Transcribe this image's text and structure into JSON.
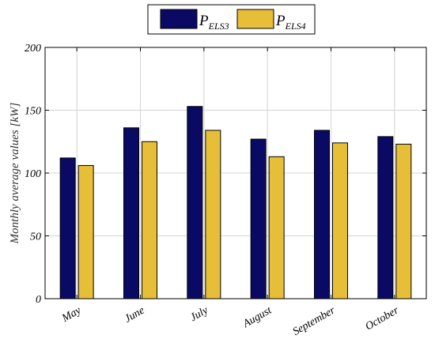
{
  "chart_data": {
    "type": "bar",
    "categories": [
      "May",
      "June",
      "July",
      "August",
      "September",
      "October"
    ],
    "series": [
      {
        "name_main": "P",
        "name_sub": "ELS3",
        "color": "#0a0a64",
        "values": [
          112,
          136,
          153,
          127,
          134,
          129
        ]
      },
      {
        "name_main": "P",
        "name_sub": "ELS4",
        "color": "#e6be37",
        "values": [
          106,
          125,
          134,
          113,
          124,
          123
        ]
      }
    ],
    "ylabel": "Monthly average values [kW]",
    "ylim": [
      0,
      200
    ],
    "yticks": [
      0,
      50,
      100,
      150,
      200
    ],
    "grid": true,
    "legend_position": "top-center"
  }
}
